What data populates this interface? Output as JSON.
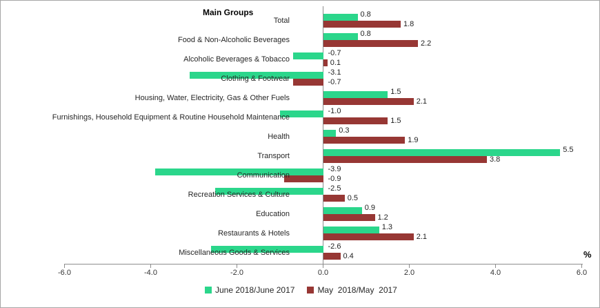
{
  "chart_data": {
    "type": "bar",
    "orientation": "horizontal",
    "title": "Main Groups",
    "value_axis_label": "%",
    "categories": [
      "Total",
      "Food & Non-Alcoholic Beverages",
      "Alcoholic Beverages & Tobacco",
      "Clothing & Footwear",
      "Housing, Water, Electricity, Gas & Other Fuels",
      "Furnishings, Household Equipment & Routine Household Maintenance",
      "Health",
      "Transport",
      "Communication",
      "Recreation Services & Culture",
      "Education",
      "Restaurants & Hotels",
      "Miscellaneous Goods & Services"
    ],
    "series": [
      {
        "name": "June 2018/June 2017",
        "color": "#2bd68b",
        "values": [
          0.8,
          0.8,
          -0.7,
          -3.1,
          1.5,
          -1.0,
          0.3,
          5.5,
          -3.9,
          -2.5,
          0.9,
          1.3,
          -2.6
        ]
      },
      {
        "name": "May  2018/May  2017",
        "color": "#973734",
        "values": [
          1.8,
          2.2,
          0.1,
          -0.7,
          2.1,
          1.5,
          1.9,
          3.8,
          -0.9,
          0.5,
          1.2,
          2.1,
          0.4
        ]
      }
    ],
    "xlim": [
      -6.0,
      6.0
    ],
    "x_ticks": [
      -6.0,
      -4.0,
      -2.0,
      0.0,
      2.0,
      4.0,
      6.0
    ],
    "x_tick_labels": [
      "-6.0",
      "-4.0",
      "-2.0",
      "0.0",
      "2.0",
      "4.0",
      "6.0"
    ],
    "grid": false,
    "data_labels": true,
    "legend_position": "bottom"
  }
}
